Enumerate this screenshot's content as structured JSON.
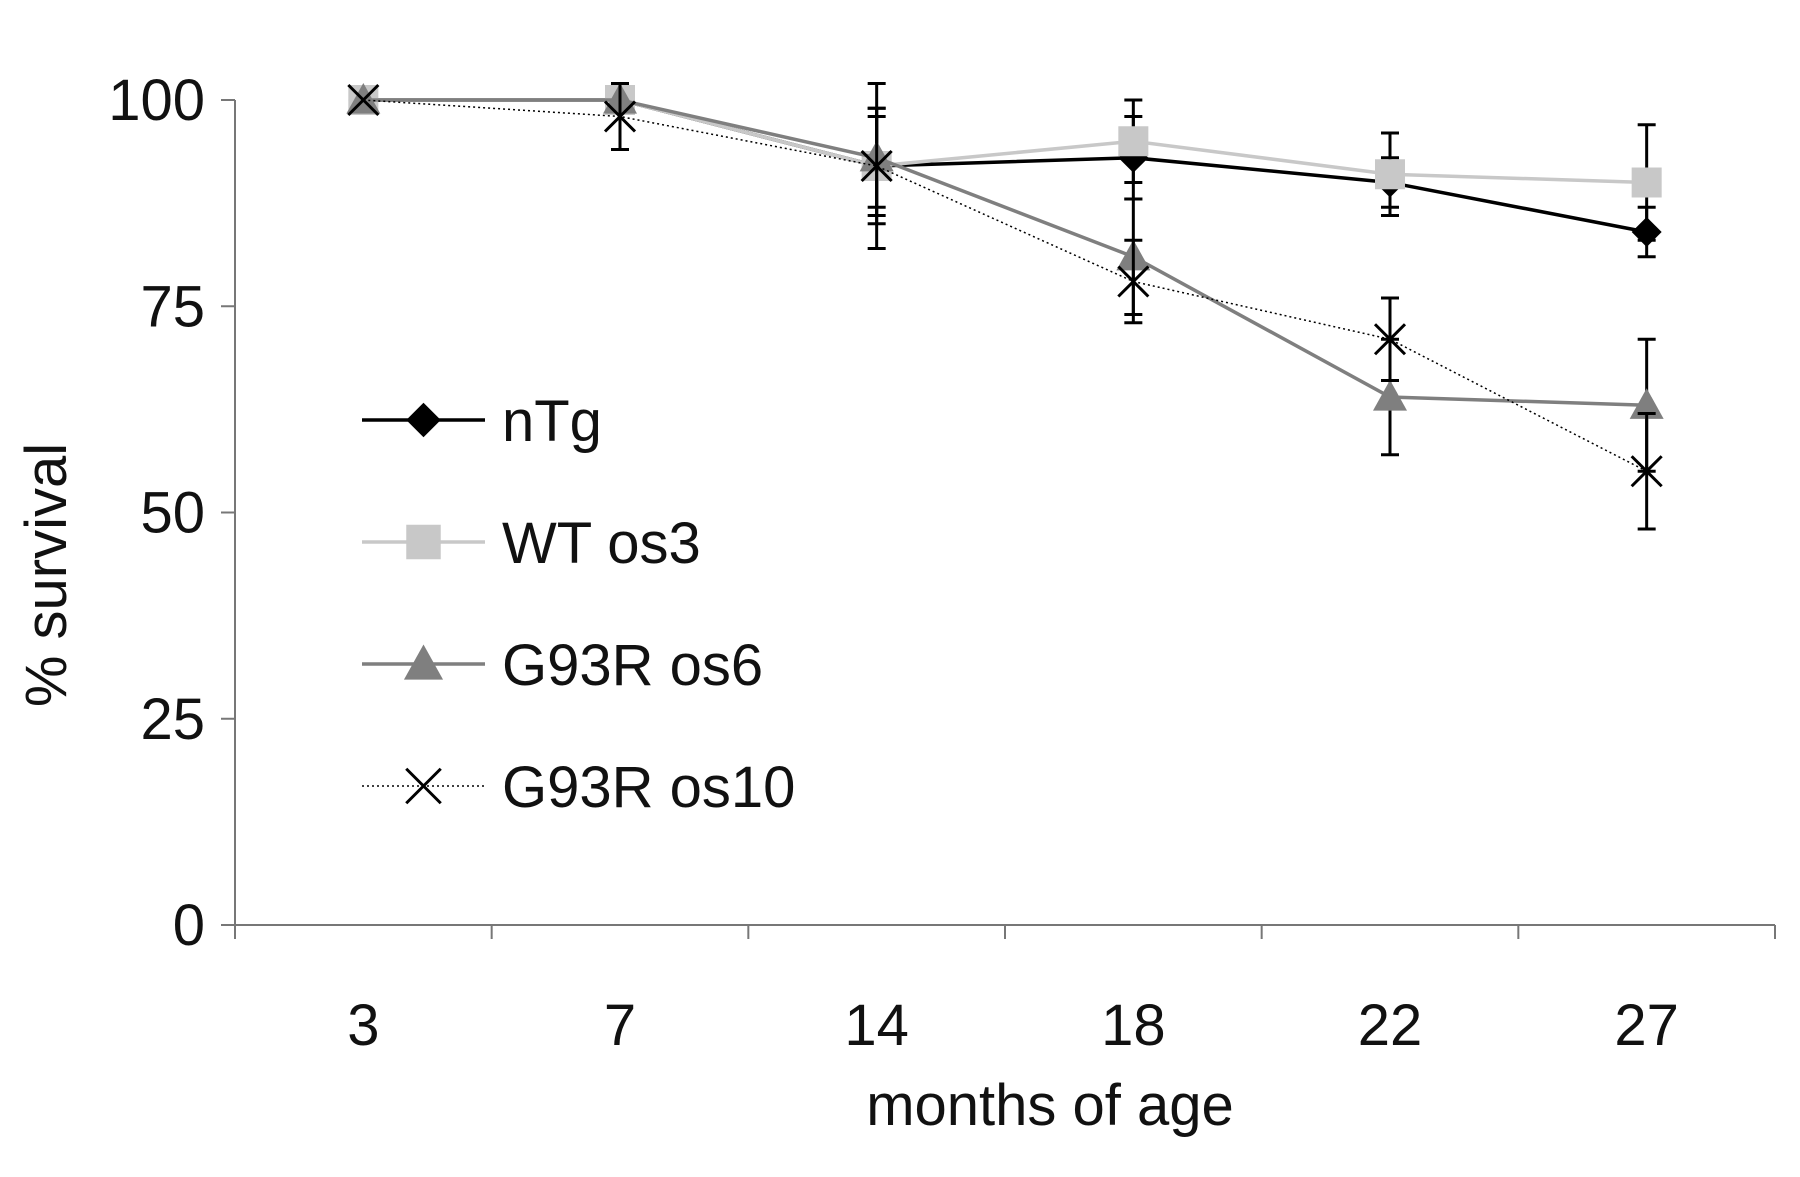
{
  "chart_data": {
    "type": "line",
    "title": "",
    "xlabel": "months of age",
    "ylabel": "% survival",
    "categories": [
      "3",
      "7",
      "14",
      "18",
      "22",
      "27"
    ],
    "ylim": [
      0,
      100
    ],
    "yticks": [
      "0",
      "25",
      "50",
      "75",
      "100"
    ],
    "grid": false,
    "legend_position": "left-center",
    "series": [
      {
        "name": "nTg",
        "values": [
          100,
          100,
          92,
          93,
          90,
          84
        ],
        "error": [
          0,
          0,
          7,
          5,
          3,
          3
        ],
        "marker": "diamond",
        "color": "#000000",
        "line_style": "solid"
      },
      {
        "name": "WT os3",
        "values": [
          100,
          100,
          92,
          95,
          91,
          90
        ],
        "error": [
          0,
          0,
          6,
          5,
          5,
          7
        ],
        "marker": "square",
        "color": "#c8c8c8",
        "line_style": "solid"
      },
      {
        "name": "G93R os6",
        "values": [
          100,
          100,
          93,
          81,
          64,
          63
        ],
        "error": [
          0,
          0,
          6,
          7,
          7,
          8
        ],
        "marker": "triangle",
        "color": "#7f7f7f",
        "line_style": "solid"
      },
      {
        "name": "G93R os10",
        "values": [
          100,
          98,
          92,
          78,
          71,
          55
        ],
        "error": [
          0,
          4,
          10,
          5,
          5,
          7
        ],
        "marker": "x",
        "color": "#000000",
        "line_style": "dotted"
      }
    ]
  }
}
